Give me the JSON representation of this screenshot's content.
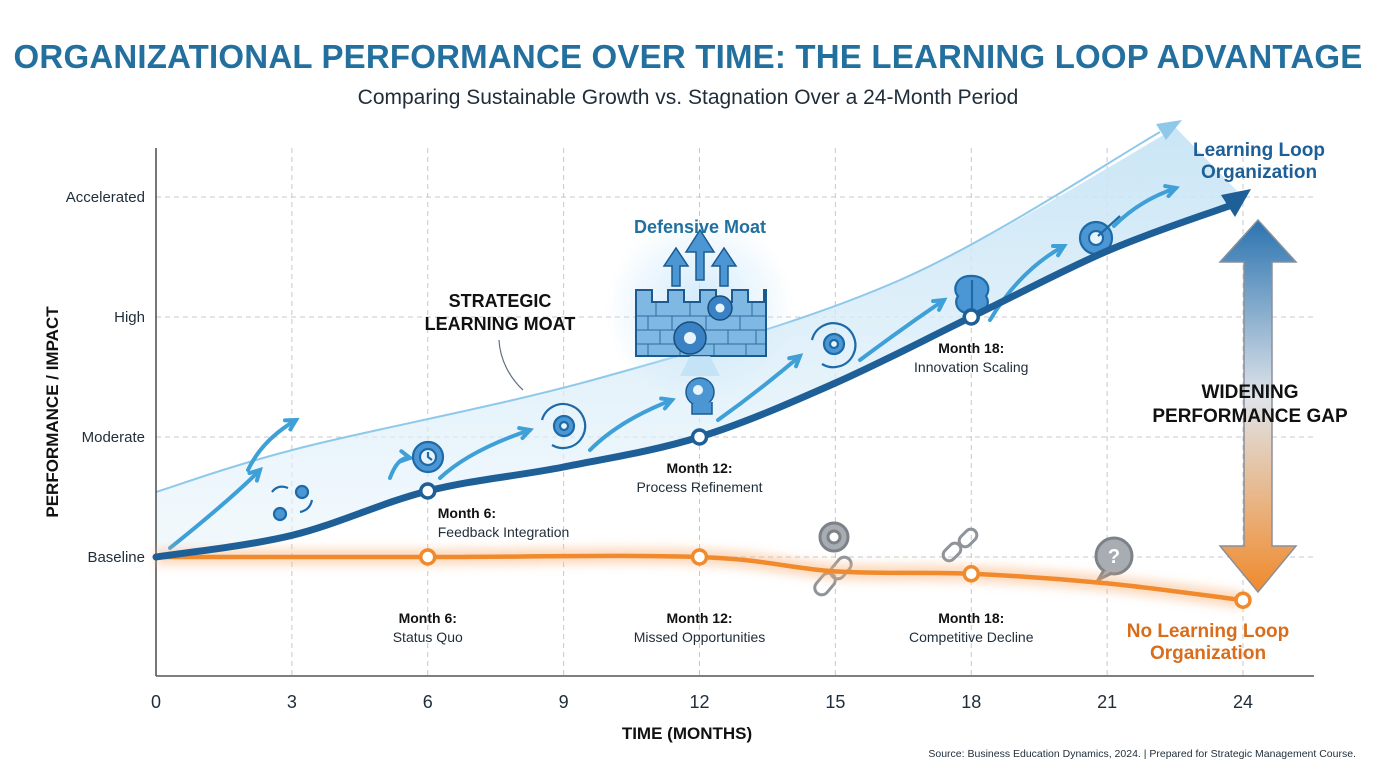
{
  "title": "ORGANIZATIONAL PERFORMANCE OVER TIME: THE LEARNING LOOP ADVANTAGE",
  "subtitle": "Comparing Sustainable Growth vs. Stagnation Over a 24-Month Period",
  "source": "Source: Business Education Dynamics, 2024. | Prepared for Strategic Management Course.",
  "chart_data": {
    "type": "line",
    "xlabel": "TIME (MONTHS)",
    "ylabel": "PERFORMANCE / IMPACT",
    "x_ticks": [
      "0",
      "3",
      "6",
      "9",
      "12",
      "15",
      "18",
      "21",
      "24"
    ],
    "y_ticks": [
      "Baseline",
      "Moderate",
      "High",
      "Accelerated"
    ],
    "xlim": [
      0,
      24
    ],
    "ylim": [
      -1,
      3
    ],
    "grid": true,
    "series": [
      {
        "name": "Learning Loop Organization",
        "color": "#1d5f96",
        "x": [
          0,
          3,
          6,
          9,
          12,
          15,
          18,
          21,
          24
        ],
        "y": [
          0,
          0.18,
          0.55,
          0.75,
          1.0,
          1.45,
          2.0,
          2.55,
          3.0
        ],
        "markers": [
          {
            "x": 6,
            "y": 0.55,
            "label": "Month 6:",
            "sublabel": "Feedback Integration"
          },
          {
            "x": 12,
            "y": 1.0,
            "label": "Month 12:",
            "sublabel": "Process Refinement"
          },
          {
            "x": 18,
            "y": 2.0,
            "label": "Month 18:",
            "sublabel": "Innovation Scaling"
          }
        ]
      },
      {
        "name": "No Learning Loop Organization",
        "color": "#f08a2c",
        "x": [
          0,
          6,
          12,
          15,
          18,
          21,
          24
        ],
        "y": [
          0,
          0,
          0,
          -0.12,
          -0.14,
          -0.22,
          -0.36
        ],
        "markers": [
          {
            "x": 6,
            "y": 0,
            "label": "Month 6:",
            "sublabel": "Status Quo"
          },
          {
            "x": 12,
            "y": 0,
            "label": "Month 12:",
            "sublabel": "Missed Opportunities"
          },
          {
            "x": 18,
            "y": -0.14,
            "label": "Month 18:",
            "sublabel": "Competitive Decline"
          },
          {
            "x": 24,
            "y": -0.36
          }
        ]
      }
    ],
    "annotations": {
      "moat": [
        "STRATEGIC",
        "LEARNING MOAT"
      ],
      "defensive": "Defensive Moat",
      "gap": [
        "WIDENING",
        "PERFORMANCE GAP"
      ],
      "learning_end": [
        "Learning Loop",
        "Organization"
      ],
      "no_learning_end": [
        "No Learning Loop",
        "Organization"
      ]
    }
  }
}
